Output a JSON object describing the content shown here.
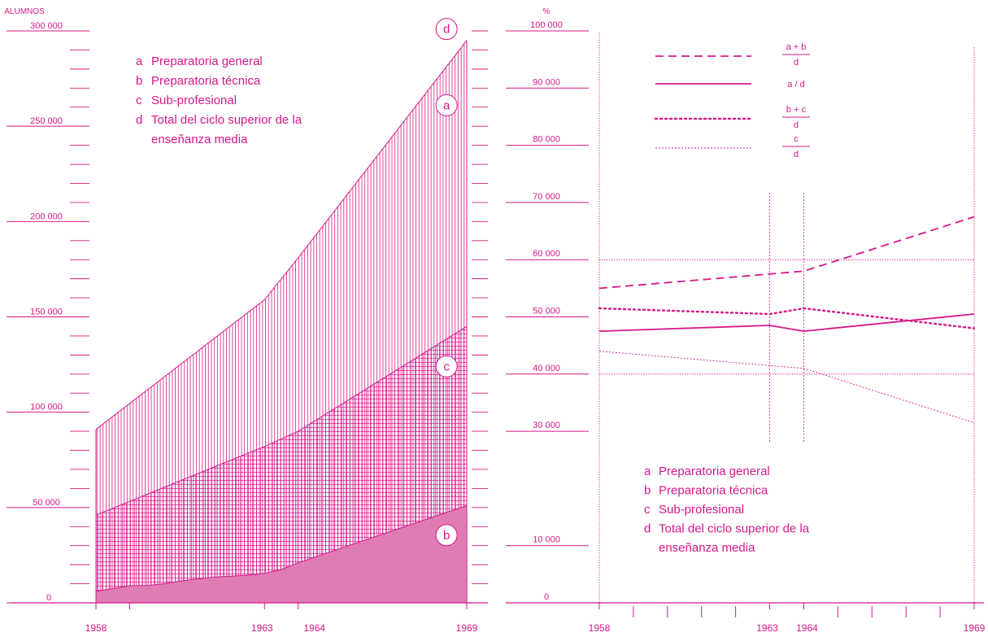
{
  "colors": {
    "accent": "#d6188a",
    "fill_b": "#e07cb4"
  },
  "chart_data": [
    {
      "type": "area",
      "stacked": true,
      "ylabel": "ALUMNOS",
      "ylim": [
        0,
        300000
      ],
      "yticks": [
        0,
        50000,
        100000,
        150000,
        200000,
        250000,
        300000
      ],
      "ytick_labels": [
        "0",
        "50 000",
        "100 000",
        "150 000",
        "200 000",
        "250 000",
        "300 000"
      ],
      "xlim": [
        1958,
        1969
      ],
      "xtick_labels": [
        "1958",
        "1963",
        "1964",
        "1969"
      ],
      "series": [
        {
          "key": "b",
          "pattern": "solid",
          "points": [
            [
              1958,
              6000
            ],
            [
              1958.5,
              7500
            ],
            [
              1959,
              9000
            ],
            [
              1959.5,
              9000
            ],
            [
              1960,
              10000
            ],
            [
              1960.5,
              11500
            ],
            [
              1961,
              12500
            ],
            [
              1961.5,
              13500
            ],
            [
              1962,
              14000
            ],
            [
              1962.5,
              14500
            ],
            [
              1963,
              15500
            ],
            [
              1963.5,
              17500
            ],
            [
              1964,
              21000
            ],
            [
              1965,
              27000
            ],
            [
              1966,
              33000
            ],
            [
              1967,
              39000
            ],
            [
              1968,
              45000
            ],
            [
              1969,
              51000
            ]
          ]
        },
        {
          "key": "c",
          "pattern": "grid",
          "points": [
            [
              1958,
              46000
            ],
            [
              1963,
              82000
            ],
            [
              1964,
              90000
            ],
            [
              1969,
              145000
            ]
          ]
        },
        {
          "key": "d",
          "pattern": "vertical-hatch",
          "points": [
            [
              1958,
              91000
            ],
            [
              1963,
              159000
            ],
            [
              1964,
              181000
            ],
            [
              1969,
              295000
            ]
          ]
        }
      ],
      "markers": [
        {
          "letter": "d",
          "x": 1968.4,
          "y": 301000
        },
        {
          "letter": "a",
          "x": 1968.4,
          "y": 261000
        },
        {
          "letter": "c",
          "x": 1968.4,
          "y": 124000
        },
        {
          "letter": "b",
          "x": 1968.4,
          "y": 35500
        }
      ],
      "legend": {
        "placement": "top-left",
        "items": [
          {
            "letter": "a",
            "text": "Preparatoria general"
          },
          {
            "letter": "b",
            "text": "Preparatoria técnica"
          },
          {
            "letter": "c",
            "text": "Sub-profesional"
          },
          {
            "letter": "d",
            "text": "Total del ciclo superior de la"
          },
          {
            "letter": "",
            "text": "enseñanza media"
          }
        ]
      }
    },
    {
      "type": "line",
      "ylabel": "%",
      "ylim": [
        0,
        100000
      ],
      "yticks": [
        0,
        10000,
        30000,
        40000,
        50000,
        60000,
        70000,
        80000,
        90000,
        100000
      ],
      "ytick_labels": [
        "0",
        "10 000",
        "30 000",
        "40 000",
        "50 000",
        "60 000",
        "70 000",
        "80 000",
        "90 000",
        "100 000"
      ],
      "xlim": [
        1958,
        1969
      ],
      "xtick_labels": [
        "1958",
        "1963",
        "1964",
        "1969"
      ],
      "series": [
        {
          "key": "a+b",
          "style": "dashed",
          "points": [
            [
              1958,
              55000
            ],
            [
              1963,
              57500
            ],
            [
              1964,
              58000
            ],
            [
              1969,
              67500
            ]
          ]
        },
        {
          "key": "a",
          "style": "solid",
          "points": [
            [
              1958,
              47500
            ],
            [
              1963,
              48500
            ],
            [
              1964,
              47500
            ],
            [
              1969,
              50500
            ]
          ]
        },
        {
          "key": "b+c",
          "style": "dotted",
          "points": [
            [
              1958,
              51500
            ],
            [
              1963,
              50500
            ],
            [
              1964,
              51500
            ],
            [
              1969,
              48000
            ]
          ]
        },
        {
          "key": "c",
          "style": "fine-dotted",
          "points": [
            [
              1958,
              44000
            ],
            [
              1963,
              41500
            ],
            [
              1964,
              41000
            ],
            [
              1969,
              31500
            ]
          ]
        }
      ],
      "legend_formulas": [
        {
          "num": "a + b",
          "den": "d",
          "style": "dashed"
        },
        {
          "num": "a / d",
          "den": "",
          "style": "solid"
        },
        {
          "num": "b + c",
          "den": "d",
          "style": "dotted"
        },
        {
          "num": "c",
          "den": "d",
          "style": "fine-dotted"
        }
      ],
      "legend": {
        "placement": "bottom-center",
        "items": [
          {
            "letter": "a",
            "text": "Preparatoria general"
          },
          {
            "letter": "b",
            "text": "Preparatoria técnica"
          },
          {
            "letter": "c",
            "text": "Sub-profesional"
          },
          {
            "letter": "d",
            "text": "Total del ciclo superior de la"
          },
          {
            "letter": "",
            "text": "enseñanza media"
          }
        ]
      }
    }
  ]
}
